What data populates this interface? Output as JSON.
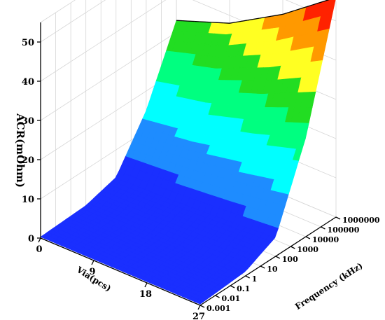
{
  "chart_data": {
    "type": "surface",
    "zlabel": "ACR(mOhm)",
    "xlabel": "Via(pcs)",
    "ylabel": "Frequency (kHz)",
    "z_ticks": [
      "0",
      "10",
      "20",
      "30",
      "40",
      "50"
    ],
    "via_ticks": [
      "0",
      "9",
      "18",
      "27"
    ],
    "freq_ticks": [
      "0.001",
      "0.01",
      "0.1",
      "1",
      "10",
      "100",
      "1000",
      "10000",
      "100000",
      "1000000"
    ],
    "zlim": [
      0,
      55
    ],
    "via_range": [
      0,
      27
    ],
    "log_freq_range": [
      -3,
      6
    ],
    "colormap": [
      "#1a2fff",
      "#1e8cff",
      "#00ffff",
      "#00ff80",
      "#22dd22",
      "#ffff22",
      "#ff9900",
      "#ff2200"
    ],
    "surface_profile_at_via_0": [
      {
        "frequency": 0.001,
        "acr": 0.3
      },
      {
        "frequency": 1,
        "acr": 0.8
      },
      {
        "frequency": 100,
        "acr": 3
      },
      {
        "frequency": 10000,
        "acr": 15
      },
      {
        "frequency": 1000000,
        "acr": 33
      }
    ],
    "surface_profile_at_max_frequency": [
      {
        "via": 0,
        "acr": 33
      },
      {
        "via": 9,
        "acr": 38
      },
      {
        "via": 18,
        "acr": 46
      },
      {
        "via": 27,
        "acr": 56
      }
    ]
  }
}
